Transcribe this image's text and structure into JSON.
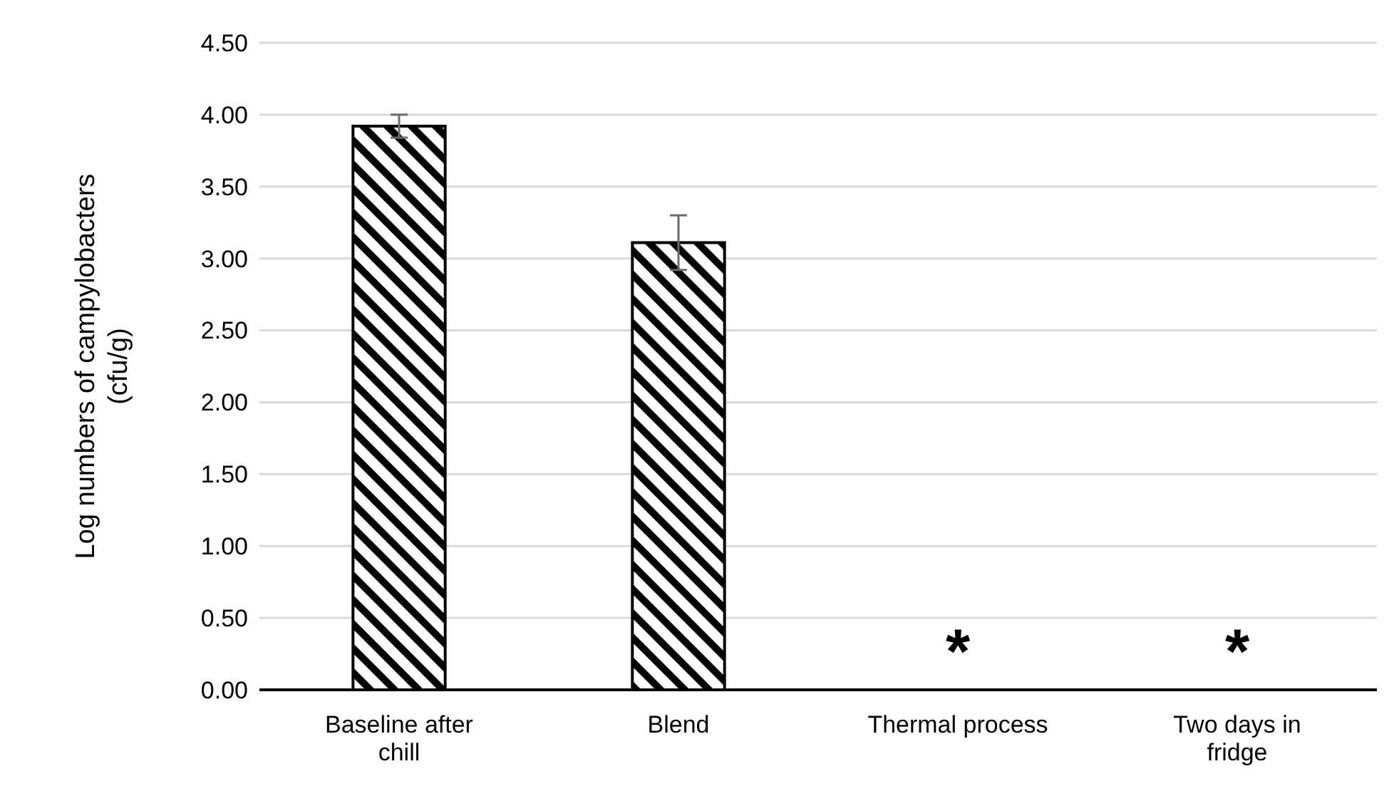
{
  "chart_data": {
    "type": "bar",
    "categories": [
      "Baseline after chill",
      "Blend",
      "Thermal process",
      "Two days in fridge"
    ],
    "values": [
      3.92,
      3.11,
      null,
      null
    ],
    "errors": [
      0.08,
      0.19,
      null,
      null
    ],
    "color": "#000000",
    "ylabel": "Log numbers of campylobacters\n(cfu/g)",
    "ylim": [
      0,
      4.5
    ],
    "yticks": [
      {
        "value": 0,
        "label": "0.00"
      },
      {
        "value": 0.5,
        "label": "0.50"
      },
      {
        "value": 1,
        "label": "1.00"
      },
      {
        "value": 1.5,
        "label": "1.50"
      },
      {
        "value": 2,
        "label": "2.00"
      },
      {
        "value": 2.5,
        "label": "2.50"
      },
      {
        "value": 3,
        "label": "3.00"
      },
      {
        "value": 3.5,
        "label": "3.50"
      },
      {
        "value": 4,
        "label": "4.00"
      },
      {
        "value": 4.5,
        "label": "4.50"
      }
    ],
    "grid": "y",
    "annotations": [
      "*",
      "*"
    ]
  }
}
